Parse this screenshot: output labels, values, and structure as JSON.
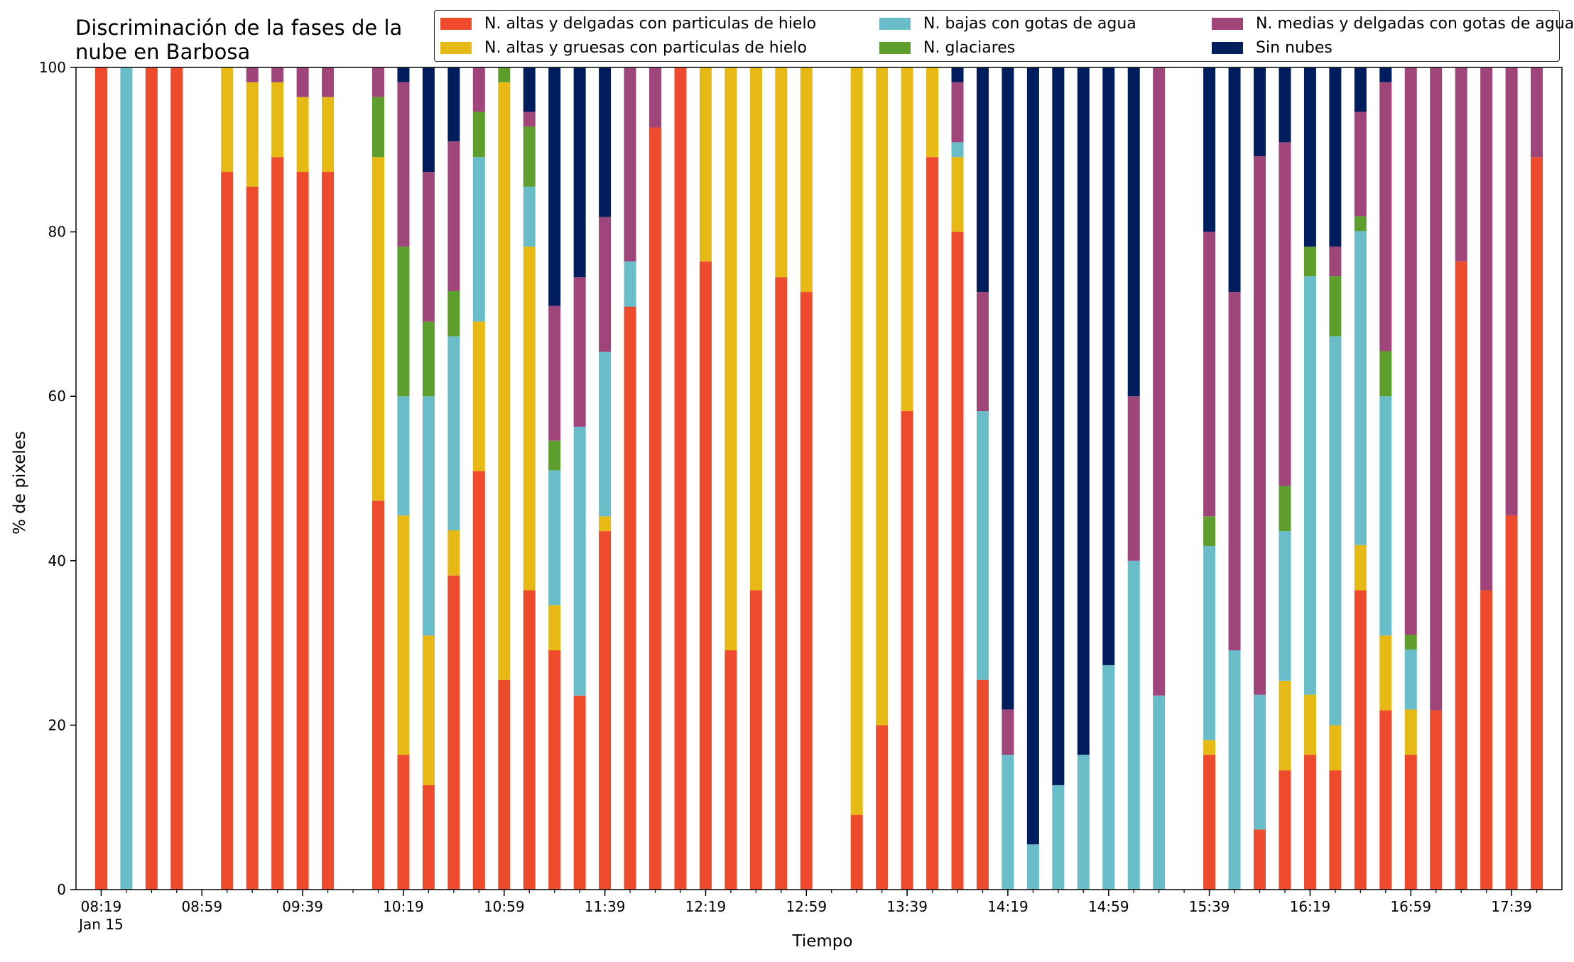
{
  "chart_data": {
    "type": "bar",
    "stacked": true,
    "title": "Discriminación de la fases de la nube en Barbosa",
    "xlabel": "Tiempo",
    "ylabel": "% de pixeles",
    "ylim": [
      0,
      100
    ],
    "yticks": [
      "0",
      "20",
      "40",
      "60",
      "80",
      "100"
    ],
    "xticks": [
      "08:19",
      "08:59",
      "09:39",
      "10:19",
      "10:59",
      "11:39",
      "12:19",
      "12:59",
      "13:39",
      "14:19",
      "14:59",
      "15:39",
      "16:19",
      "16:59",
      "17:39"
    ],
    "xtick_sublabel": "Jan 15",
    "x_minutes_first": 499,
    "x_minutes_last": 1069,
    "x_minutes_step": 10,
    "legend_position": "top-right",
    "series": [
      {
        "name": "N. altas y delgadas con particulas de hielo",
        "color": "#ee4a2c"
      },
      {
        "name": "N. altas y gruesas con particulas de hielo",
        "color": "#e6b915"
      },
      {
        "name": "N. bajas con gotas de agua",
        "color": "#68bdc9"
      },
      {
        "name": "N. glaciares",
        "color": "#5d9e2c"
      },
      {
        "name": "N. medias y delgadas con gotas de agua",
        "color": "#a0457a"
      },
      {
        "name": "Sin nubes",
        "color": "#001d5d"
      }
    ],
    "bars": [
      {
        "time": "08:19",
        "values": [
          100,
          0,
          0,
          0,
          0,
          0
        ]
      },
      {
        "time": "08:29",
        "values": [
          0,
          0,
          100,
          0,
          0,
          0
        ]
      },
      {
        "time": "08:39",
        "values": [
          100,
          0,
          0,
          0,
          0,
          0
        ]
      },
      {
        "time": "08:49",
        "values": [
          100,
          0,
          0,
          0,
          0,
          0
        ]
      },
      {
        "time": "09:09",
        "values": [
          87.3,
          12.7,
          0,
          0,
          0,
          0
        ]
      },
      {
        "time": "09:19",
        "values": [
          85.5,
          12.7,
          0,
          0,
          1.8,
          0
        ]
      },
      {
        "time": "09:29",
        "values": [
          89.1,
          9.1,
          0,
          0,
          1.8,
          0
        ]
      },
      {
        "time": "09:39",
        "values": [
          87.3,
          9.1,
          0,
          0,
          3.6,
          0
        ]
      },
      {
        "time": "09:49",
        "values": [
          87.3,
          9.1,
          0,
          0,
          3.6,
          0
        ]
      },
      {
        "time": "10:09",
        "values": [
          47.3,
          41.8,
          0,
          7.3,
          3.6,
          0
        ]
      },
      {
        "time": "10:19",
        "values": [
          16.4,
          29.1,
          14.5,
          18.2,
          20.0,
          1.8
        ]
      },
      {
        "time": "10:29",
        "values": [
          12.7,
          18.2,
          29.1,
          9.1,
          18.2,
          12.7
        ]
      },
      {
        "time": "10:39",
        "values": [
          38.2,
          5.5,
          23.6,
          5.5,
          18.2,
          9.0
        ]
      },
      {
        "time": "10:49",
        "values": [
          50.9,
          18.2,
          20.0,
          5.5,
          5.4,
          0
        ]
      },
      {
        "time": "10:59",
        "values": [
          25.5,
          72.7,
          0,
          1.8,
          0,
          0
        ]
      },
      {
        "time": "11:09",
        "values": [
          36.4,
          41.8,
          7.3,
          7.3,
          1.8,
          5.4
        ]
      },
      {
        "time": "11:19",
        "values": [
          29.1,
          5.5,
          16.4,
          3.6,
          16.4,
          29.0
        ]
      },
      {
        "time": "11:29",
        "values": [
          23.6,
          0,
          32.7,
          0,
          18.2,
          25.5
        ]
      },
      {
        "time": "11:39",
        "values": [
          43.6,
          1.8,
          20.0,
          0,
          16.4,
          18.2
        ]
      },
      {
        "time": "11:49",
        "values": [
          70.9,
          0,
          5.5,
          0,
          23.6,
          0
        ]
      },
      {
        "time": "11:59",
        "values": [
          92.7,
          0,
          0,
          0,
          7.3,
          0
        ]
      },
      {
        "time": "12:09",
        "values": [
          100,
          0,
          0,
          0,
          0,
          0
        ]
      },
      {
        "time": "12:19",
        "values": [
          76.4,
          23.6,
          0,
          0,
          0,
          0
        ]
      },
      {
        "time": "12:29",
        "values": [
          29.1,
          70.9,
          0,
          0,
          0,
          0
        ]
      },
      {
        "time": "12:39",
        "values": [
          36.4,
          63.6,
          0,
          0,
          0,
          0
        ]
      },
      {
        "time": "12:49",
        "values": [
          74.5,
          25.5,
          0,
          0,
          0,
          0
        ]
      },
      {
        "time": "12:59",
        "values": [
          72.7,
          27.3,
          0,
          0,
          0,
          0
        ]
      },
      {
        "time": "13:19",
        "values": [
          9.1,
          90.9,
          0,
          0,
          0,
          0
        ]
      },
      {
        "time": "13:29",
        "values": [
          20.0,
          80.0,
          0,
          0,
          0,
          0
        ]
      },
      {
        "time": "13:39",
        "values": [
          58.2,
          41.8,
          0,
          0,
          0,
          0
        ]
      },
      {
        "time": "13:49",
        "values": [
          89.1,
          10.9,
          0,
          0,
          0,
          0
        ]
      },
      {
        "time": "13:59",
        "values": [
          80.0,
          9.1,
          1.8,
          0,
          7.3,
          1.8
        ]
      },
      {
        "time": "14:09",
        "values": [
          25.5,
          0,
          32.7,
          0,
          14.5,
          27.3
        ]
      },
      {
        "time": "14:19",
        "values": [
          0,
          0,
          16.4,
          0,
          5.5,
          78.1
        ]
      },
      {
        "time": "14:29",
        "values": [
          0,
          0,
          5.5,
          0,
          0,
          94.5
        ]
      },
      {
        "time": "14:39",
        "values": [
          0,
          0,
          12.7,
          0,
          0,
          87.3
        ]
      },
      {
        "time": "14:49",
        "values": [
          0,
          0,
          16.4,
          0,
          0,
          83.6
        ]
      },
      {
        "time": "14:59",
        "values": [
          0,
          0,
          27.3,
          0,
          0,
          72.7
        ]
      },
      {
        "time": "15:09",
        "values": [
          0,
          0,
          40.0,
          0,
          20.0,
          40.0
        ]
      },
      {
        "time": "15:19",
        "values": [
          0,
          0,
          23.6,
          0,
          76.4,
          0
        ]
      },
      {
        "time": "15:39",
        "values": [
          16.4,
          1.8,
          23.6,
          3.6,
          34.6,
          20.0
        ]
      },
      {
        "time": "15:49",
        "values": [
          0,
          0,
          29.1,
          0,
          43.6,
          27.3
        ]
      },
      {
        "time": "15:59",
        "values": [
          7.3,
          0,
          16.4,
          0,
          65.5,
          10.8
        ]
      },
      {
        "time": "16:09",
        "values": [
          14.5,
          10.9,
          18.2,
          5.5,
          41.8,
          9.1
        ]
      },
      {
        "time": "16:19",
        "values": [
          16.4,
          7.3,
          50.9,
          3.6,
          0,
          21.8
        ]
      },
      {
        "time": "16:29",
        "values": [
          14.5,
          5.5,
          47.3,
          7.3,
          3.6,
          21.8
        ]
      },
      {
        "time": "16:39",
        "values": [
          36.4,
          5.5,
          38.2,
          1.8,
          12.7,
          5.4
        ]
      },
      {
        "time": "16:49",
        "values": [
          21.8,
          9.1,
          29.1,
          5.5,
          32.7,
          1.8
        ]
      },
      {
        "time": "16:59",
        "values": [
          16.4,
          5.5,
          7.3,
          1.8,
          69.0,
          0
        ]
      },
      {
        "time": "17:09",
        "values": [
          21.8,
          0,
          0,
          0,
          78.2,
          0
        ]
      },
      {
        "time": "17:19",
        "values": [
          76.4,
          0,
          0,
          0,
          23.6,
          0
        ]
      },
      {
        "time": "17:29",
        "values": [
          36.4,
          0,
          0,
          0,
          63.6,
          0
        ]
      },
      {
        "time": "17:39",
        "values": [
          45.5,
          0,
          0,
          0,
          54.5,
          0
        ]
      },
      {
        "time": "17:49",
        "values": [
          89.1,
          0,
          0,
          0,
          10.9,
          0
        ]
      }
    ]
  }
}
